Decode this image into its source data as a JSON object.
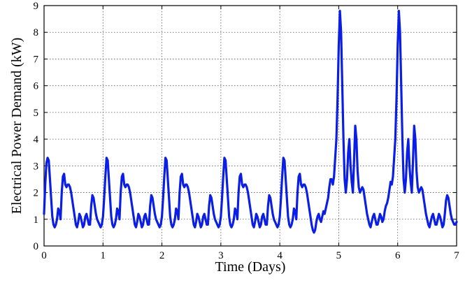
{
  "chart_data": {
    "type": "line",
    "title": "",
    "xlabel": "Time (Days)",
    "ylabel": "Electrical Power Demand (kW)",
    "xlim": [
      0,
      7
    ],
    "ylim": [
      0,
      9
    ],
    "x_ticks": [
      0,
      1,
      2,
      3,
      4,
      5,
      6,
      7
    ],
    "y_ticks": [
      0,
      1,
      2,
      3,
      4,
      5,
      6,
      7,
      8,
      9
    ],
    "grid": true,
    "legend": "none",
    "line_color": "#0a1ee6",
    "series": [
      {
        "x": [
          0.0,
          0.02,
          0.04,
          0.06,
          0.08,
          0.1,
          0.12,
          0.14,
          0.16,
          0.18,
          0.2,
          0.22,
          0.24,
          0.26,
          0.28,
          0.3,
          0.32,
          0.34,
          0.36,
          0.38,
          0.4,
          0.42,
          0.44,
          0.46,
          0.48,
          0.5,
          0.52,
          0.54,
          0.56,
          0.58,
          0.6,
          0.62,
          0.64,
          0.66,
          0.68,
          0.7,
          0.72,
          0.74,
          0.76,
          0.78,
          0.8,
          0.82,
          0.84,
          0.86,
          0.88,
          0.9,
          0.92,
          0.94,
          0.96,
          0.98,
          1.0,
          1.02,
          1.04,
          1.06,
          1.08,
          1.1,
          1.12,
          1.14,
          1.16,
          1.18,
          1.2,
          1.22,
          1.24,
          1.26,
          1.28,
          1.3,
          1.32,
          1.34,
          1.36,
          1.38,
          1.4,
          1.42,
          1.44,
          1.46,
          1.48,
          1.5,
          1.52,
          1.54,
          1.56,
          1.58,
          1.6,
          1.62,
          1.64,
          1.66,
          1.68,
          1.7,
          1.72,
          1.74,
          1.76,
          1.78,
          1.8,
          1.82,
          1.84,
          1.86,
          1.88,
          1.9,
          1.92,
          1.94,
          1.96,
          1.98,
          2.0,
          2.02,
          2.04,
          2.06,
          2.08,
          2.1,
          2.12,
          2.14,
          2.16,
          2.18,
          2.2,
          2.22,
          2.24,
          2.26,
          2.28,
          2.3,
          2.32,
          2.34,
          2.36,
          2.38,
          2.4,
          2.42,
          2.44,
          2.46,
          2.48,
          2.5,
          2.52,
          2.54,
          2.56,
          2.58,
          2.6,
          2.62,
          2.64,
          2.66,
          2.68,
          2.7,
          2.72,
          2.74,
          2.76,
          2.78,
          2.8,
          2.82,
          2.84,
          2.86,
          2.88,
          2.9,
          2.92,
          2.94,
          2.96,
          2.98,
          3.0,
          3.02,
          3.04,
          3.06,
          3.08,
          3.1,
          3.12,
          3.14,
          3.16,
          3.18,
          3.2,
          3.22,
          3.24,
          3.26,
          3.28,
          3.3,
          3.32,
          3.34,
          3.36,
          3.38,
          3.4,
          3.42,
          3.44,
          3.46,
          3.48,
          3.5,
          3.52,
          3.54,
          3.56,
          3.58,
          3.6,
          3.62,
          3.64,
          3.66,
          3.68,
          3.7,
          3.72,
          3.74,
          3.76,
          3.78,
          3.8,
          3.82,
          3.84,
          3.86,
          3.88,
          3.9,
          3.92,
          3.94,
          3.96,
          3.98,
          4.0,
          4.02,
          4.04,
          4.06,
          4.08,
          4.1,
          4.12,
          4.14,
          4.16,
          4.18,
          4.2,
          4.22,
          4.24,
          4.26,
          4.28,
          4.3,
          4.32,
          4.34,
          4.36,
          4.38,
          4.4,
          4.42,
          4.44,
          4.46,
          4.48,
          4.5,
          4.52,
          4.54,
          4.56,
          4.58,
          4.6,
          4.62,
          4.64,
          4.66,
          4.68,
          4.7,
          4.72,
          4.74,
          4.76,
          4.78,
          4.8,
          4.82,
          4.84,
          4.86,
          4.88,
          4.9,
          4.92,
          4.94,
          4.96,
          4.98,
          5.0,
          5.02,
          5.04,
          5.06,
          5.08,
          5.1,
          5.12,
          5.14,
          5.16,
          5.18,
          5.2,
          5.22,
          5.24,
          5.26,
          5.28,
          5.3,
          5.32,
          5.34,
          5.36,
          5.38,
          5.4,
          5.42,
          5.44,
          5.46,
          5.48,
          5.5,
          5.52,
          5.54,
          5.56,
          5.58,
          5.6,
          5.62,
          5.64,
          5.66,
          5.68,
          5.7,
          5.72,
          5.74,
          5.76,
          5.78,
          5.8,
          5.82,
          5.84,
          5.86,
          5.88,
          5.9,
          5.92,
          5.94,
          5.96,
          5.98,
          6.0,
          6.02,
          6.04,
          6.06,
          6.08,
          6.1,
          6.12,
          6.14,
          6.16,
          6.18,
          6.2,
          6.22,
          6.24,
          6.26,
          6.28,
          6.3,
          6.32,
          6.34,
          6.36,
          6.38,
          6.4,
          6.42,
          6.44,
          6.46,
          6.48,
          6.5,
          6.52,
          6.54,
          6.56,
          6.58,
          6.6,
          6.62,
          6.64,
          6.66,
          6.68,
          6.7,
          6.72,
          6.74,
          6.76,
          6.78,
          6.8,
          6.82,
          6.84,
          6.86,
          6.88,
          6.9,
          6.92,
          6.94,
          6.96,
          6.98,
          7.0
        ],
        "values": [
          1.2,
          2.3,
          3.1,
          3.3,
          3.2,
          2.5,
          1.8,
          1.1,
          0.8,
          0.7,
          0.8,
          1.0,
          1.4,
          1.3,
          1.0,
          2.0,
          2.6,
          2.7,
          2.3,
          2.2,
          2.3,
          2.3,
          2.2,
          2.0,
          1.7,
          1.4,
          1.1,
          0.8,
          0.7,
          0.9,
          1.2,
          1.1,
          0.9,
          0.7,
          0.8,
          1.1,
          1.2,
          1.0,
          0.8,
          0.8,
          1.5,
          1.9,
          1.8,
          1.5,
          1.2,
          1.0,
          0.9,
          0.8,
          0.7,
          0.8,
          1.1,
          1.8,
          2.6,
          3.3,
          3.2,
          2.5,
          1.8,
          1.1,
          0.8,
          0.7,
          0.8,
          1.0,
          1.4,
          1.3,
          1.0,
          2.0,
          2.6,
          2.7,
          2.3,
          2.2,
          2.3,
          2.3,
          2.2,
          2.0,
          1.7,
          1.4,
          1.1,
          0.8,
          0.7,
          0.9,
          1.2,
          1.1,
          0.9,
          0.7,
          0.8,
          1.1,
          1.2,
          1.0,
          0.8,
          0.8,
          1.5,
          1.9,
          1.8,
          1.5,
          1.2,
          1.0,
          0.9,
          0.8,
          0.7,
          0.8,
          1.1,
          1.8,
          2.6,
          3.3,
          3.2,
          2.5,
          1.8,
          1.1,
          0.8,
          0.7,
          0.8,
          1.0,
          1.4,
          1.3,
          1.0,
          2.0,
          2.6,
          2.7,
          2.3,
          2.2,
          2.3,
          2.3,
          2.2,
          2.0,
          1.7,
          1.4,
          1.1,
          0.8,
          0.7,
          0.9,
          1.2,
          1.1,
          0.9,
          0.7,
          0.8,
          1.1,
          1.2,
          1.0,
          0.8,
          0.8,
          1.5,
          1.9,
          1.8,
          1.5,
          1.2,
          1.0,
          0.9,
          0.8,
          0.7,
          0.8,
          1.1,
          1.8,
          2.6,
          3.3,
          3.2,
          2.5,
          1.8,
          1.1,
          0.8,
          0.7,
          0.8,
          1.0,
          1.4,
          1.3,
          1.0,
          2.0,
          2.6,
          2.7,
          2.3,
          2.2,
          2.3,
          2.3,
          2.2,
          2.0,
          1.7,
          1.4,
          1.1,
          0.8,
          0.7,
          0.9,
          1.2,
          1.1,
          0.9,
          0.7,
          0.8,
          1.1,
          1.2,
          1.0,
          0.8,
          0.8,
          1.5,
          1.9,
          1.8,
          1.5,
          1.2,
          1.0,
          0.9,
          0.8,
          0.7,
          0.8,
          1.1,
          1.8,
          2.6,
          3.3,
          3.2,
          2.5,
          1.8,
          1.1,
          0.8,
          0.7,
          0.8,
          1.0,
          1.4,
          1.3,
          1.0,
          2.0,
          2.6,
          2.7,
          2.3,
          2.2,
          2.3,
          2.3,
          2.2,
          2.0,
          1.7,
          1.4,
          1.1,
          0.8,
          0.6,
          0.5,
          0.6,
          0.9,
          1.1,
          1.2,
          1.0,
          0.9,
          1.1,
          1.3,
          1.2,
          1.4,
          1.6,
          1.8,
          2.2,
          2.5,
          2.5,
          2.3,
          2.6,
          3.3,
          4.0,
          5.5,
          7.5,
          8.8,
          8.0,
          6.0,
          4.0,
          2.5,
          2.0,
          2.5,
          3.5,
          4.0,
          3.0,
          2.4,
          2.0,
          3.2,
          4.5,
          4.0,
          2.8,
          2.2,
          2.0,
          2.1,
          2.2,
          2.1,
          1.8,
          1.5,
          1.2,
          1.0,
          0.8,
          0.7,
          0.9,
          1.1,
          1.2,
          1.0,
          0.8,
          0.8,
          1.0,
          1.2,
          1.1,
          0.9,
          1.0,
          1.3,
          1.5,
          1.6,
          1.8,
          2.1,
          2.4,
          2.3,
          2.6,
          3.3,
          4.0,
          5.5,
          7.5,
          8.8,
          8.0,
          6.0,
          4.0,
          2.5,
          2.0,
          2.5,
          3.5,
          4.0,
          3.0,
          2.4,
          2.0,
          3.2,
          4.5,
          4.0,
          2.8,
          2.2,
          2.0,
          2.1,
          2.2,
          2.1,
          1.8,
          1.5,
          1.2,
          1.0,
          0.8,
          0.7,
          0.9,
          1.1,
          1.2,
          1.0,
          0.8,
          0.8,
          1.0,
          1.2,
          1.1,
          0.9,
          0.7,
          0.8,
          1.2,
          1.7,
          1.9,
          1.8,
          1.5,
          1.2,
          1.0,
          0.9,
          0.8,
          0.8,
          0.9
        ]
      }
    ]
  }
}
